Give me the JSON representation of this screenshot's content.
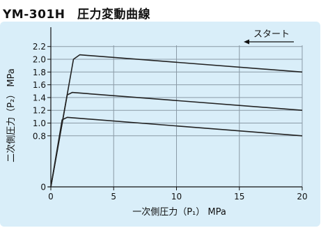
{
  "page": {
    "title": "YM-301H　圧力変動曲線"
  },
  "chart_data": {
    "type": "line",
    "title": "YM-301H　圧力変動曲線",
    "xlabel": "一次側圧力（P₁） MPa",
    "ylabel": "二次側圧力（P₂） MPa",
    "xlim": [
      0,
      20
    ],
    "ylim": [
      0,
      2.4
    ],
    "xticks": [
      0,
      5,
      10,
      15,
      20
    ],
    "xtick_labels": [
      "0",
      "5",
      "10",
      "15",
      "20"
    ],
    "yticks": [
      0,
      0.8,
      1.0,
      1.2,
      1.4,
      1.6,
      1.8,
      2.0,
      2.2
    ],
    "ytick_labels": [
      "0",
      "0.8",
      "1.0",
      "1.2",
      "1.4",
      "1.6",
      "1.8",
      "2.0",
      "2.2"
    ],
    "grid": true,
    "annotation": {
      "text": "スタート",
      "arrow": "left"
    },
    "series": [
      {
        "x": [
          0,
          1.8,
          2.3,
          20
        ],
        "y": [
          0,
          2.0,
          2.07,
          1.8
        ]
      },
      {
        "x": [
          0,
          1.3,
          1.7,
          20
        ],
        "y": [
          0,
          1.44,
          1.48,
          1.2
        ]
      },
      {
        "x": [
          0,
          0.9,
          1.3,
          20
        ],
        "y": [
          0,
          1.05,
          1.09,
          0.8
        ]
      }
    ],
    "colors": {
      "panel": "#d9eef9",
      "grid": "#8a9aa6",
      "axis": "#111111",
      "line": "#222222"
    }
  }
}
